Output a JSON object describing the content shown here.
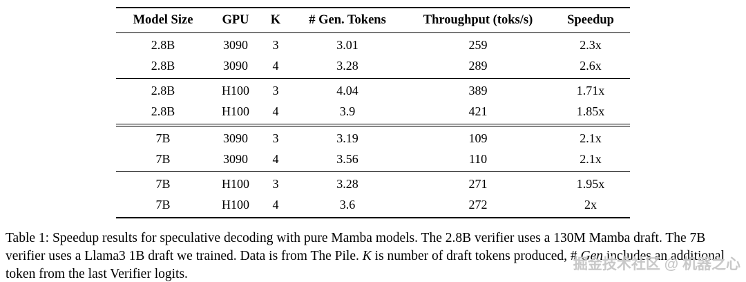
{
  "table": {
    "headers": [
      "Model Size",
      "GPU",
      "K",
      "# Gen. Tokens",
      "Throughput (toks/s)",
      "Speedup"
    ],
    "groups": [
      {
        "name": "2.8B-3090",
        "rows": [
          [
            "2.8B",
            "3090",
            "3",
            "3.01",
            "259",
            "2.3x"
          ],
          [
            "2.8B",
            "3090",
            "4",
            "3.28",
            "289",
            "2.6x"
          ]
        ]
      },
      {
        "name": "2.8B-H100",
        "rows": [
          [
            "2.8B",
            "H100",
            "3",
            "4.04",
            "389",
            "1.71x"
          ],
          [
            "2.8B",
            "H100",
            "4",
            "3.9",
            "421",
            "1.85x"
          ]
        ]
      },
      {
        "name": "7B-3090",
        "rows": [
          [
            "7B",
            "3090",
            "3",
            "3.19",
            "109",
            "2.1x"
          ],
          [
            "7B",
            "3090",
            "4",
            "3.56",
            "110",
            "2.1x"
          ]
        ]
      },
      {
        "name": "7B-H100",
        "rows": [
          [
            "7B",
            "H100",
            "3",
            "3.28",
            "271",
            "1.95x"
          ],
          [
            "7B",
            "H100",
            "4",
            "3.6",
            "272",
            "2x"
          ]
        ]
      }
    ]
  },
  "caption": {
    "part1": "Table 1: Speedup results for speculative decoding with pure Mamba models. The 2.8B verifier uses a 130M Mamba draft. The 7B verifier uses a Llama3 1B draft we trained. Data is from The Pile. ",
    "k_symbol": "K",
    "part2": " is number of draft tokens produced, # ",
    "gen_italic": "Gen",
    "part3": " includes an additional token from the last Verifier logits."
  },
  "watermark": "掘金技术社区 @ 机器之心"
}
